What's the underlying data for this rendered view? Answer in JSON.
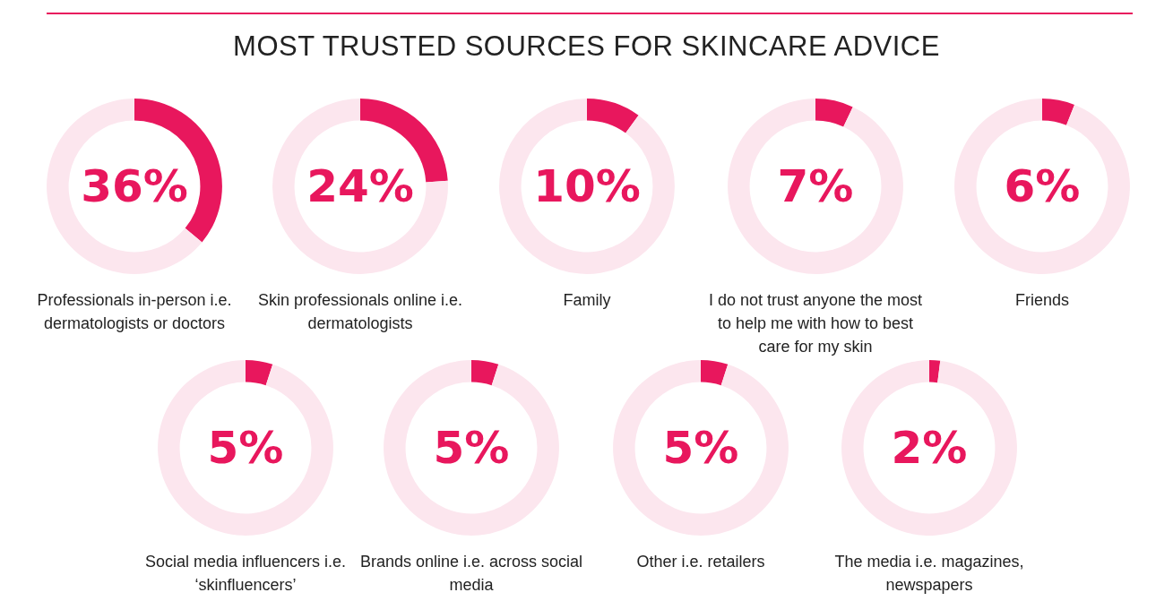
{
  "chart_data": [
    {
      "type": "other",
      "title": "MOST TRUSTED SOURCES FOR SKINCARE ADVICE"
    },
    {
      "type": "donut",
      "title": "Professionals in-person i.e. dermatologists or doctors",
      "categories": [
        null,
        null
      ],
      "values": [
        36,
        64
      ],
      "colors": [
        "#e8175d",
        "#fce6ee"
      ],
      "annotations": [
        "36%"
      ]
    },
    {
      "type": "donut",
      "title": "Skin professionals online i.e. dermatologists",
      "categories": [
        null,
        null
      ],
      "values": [
        24,
        76
      ],
      "colors": [
        "#e8175d",
        "#fce6ee"
      ],
      "annotations": [
        "24%"
      ]
    },
    {
      "type": "donut",
      "title": "Family",
      "categories": [
        null,
        null
      ],
      "values": [
        10,
        90
      ],
      "colors": [
        "#e8175d",
        "#fce6ee"
      ],
      "annotations": [
        "10%"
      ]
    },
    {
      "type": "donut",
      "title": "I do not trust anyone the most to help me with how to best care for my skin",
      "categories": [
        null,
        null
      ],
      "values": [
        7,
        93
      ],
      "colors": [
        "#e8175d",
        "#fce6ee"
      ],
      "annotations": [
        "7%"
      ]
    },
    {
      "type": "donut",
      "title": "Friends",
      "categories": [
        null,
        null
      ],
      "values": [
        6,
        94
      ],
      "colors": [
        "#e8175d",
        "#fce6ee"
      ],
      "annotations": [
        "6%"
      ]
    },
    {
      "type": "donut",
      "title": "Social media influencers i.e. ‘skinfluencers’",
      "categories": [
        null,
        null
      ],
      "values": [
        5,
        95
      ],
      "colors": [
        "#e8175d",
        "#fce6ee"
      ],
      "annotations": [
        "5%"
      ]
    },
    {
      "type": "donut",
      "title": "Brands online i.e. across social media",
      "categories": [
        null,
        null
      ],
      "values": [
        5,
        95
      ],
      "colors": [
        "#e8175d",
        "#fce6ee"
      ],
      "annotations": [
        "5%"
      ]
    },
    {
      "type": "donut",
      "title": "Other i.e. retailers",
      "categories": [
        null,
        null
      ],
      "values": [
        5,
        95
      ],
      "colors": [
        "#e8175d",
        "#fce6ee"
      ],
      "annotations": [
        "5%"
      ]
    },
    {
      "type": "donut",
      "title": "The media i.e. magazines, newspapers",
      "categories": [
        null,
        null
      ],
      "values": [
        2,
        98
      ],
      "colors": [
        "#e8175d",
        "#fce6ee"
      ],
      "annotations": [
        "2%"
      ]
    }
  ]
}
